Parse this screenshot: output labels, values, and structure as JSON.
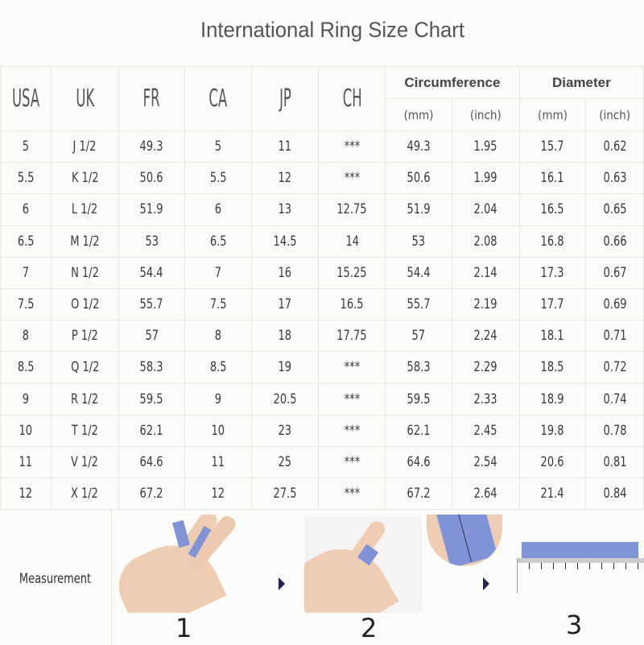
{
  "title": "International Ring Size Chart",
  "headers": {
    "usa": "USA",
    "uk": "UK",
    "fr": "FR",
    "ca": "CA",
    "jp": "JP",
    "ch": "CH",
    "circumference": "Circumference",
    "diameter": "Diameter",
    "mm": "(mm)",
    "inch": "(inch)"
  },
  "rows": [
    [
      "5",
      "J 1/2",
      "49.3",
      "5",
      "11",
      "***",
      "49.3",
      "1.95",
      "15.7",
      "0.62"
    ],
    [
      "5.5",
      "K 1/2",
      "50.6",
      "5.5",
      "12",
      "***",
      "50.6",
      "1.99",
      "16.1",
      "0.63"
    ],
    [
      "6",
      "L 1/2",
      "51.9",
      "6",
      "13",
      "12.75",
      "51.9",
      "2.04",
      "16.5",
      "0.65"
    ],
    [
      "6.5",
      "M 1/2",
      "53",
      "6.5",
      "14.5",
      "14",
      "53",
      "2.08",
      "16.8",
      "0.66"
    ],
    [
      "7",
      "N 1/2",
      "54.4",
      "7",
      "16",
      "15.25",
      "54.4",
      "2.14",
      "17.3",
      "0.67"
    ],
    [
      "7.5",
      "O 1/2",
      "55.7",
      "7.5",
      "17",
      "16.5",
      "55.7",
      "2.19",
      "17.7",
      "0.69"
    ],
    [
      "8",
      "P 1/2",
      "57",
      "8",
      "18",
      "17.75",
      "57",
      "2.24",
      "18.1",
      "0.71"
    ],
    [
      "8.5",
      "Q 1/2",
      "58.3",
      "8.5",
      "19",
      "***",
      "58.3",
      "2.29",
      "18.5",
      "0.72"
    ],
    [
      "9",
      "R 1/2",
      "59.5",
      "9",
      "20.5",
      "***",
      "59.5",
      "2.33",
      "18.9",
      "0.74"
    ],
    [
      "10",
      "T 1/2",
      "62.1",
      "10",
      "23",
      "***",
      "62.1",
      "2.45",
      "19.8",
      "0.78"
    ],
    [
      "11",
      "V 1/2",
      "64.6",
      "11",
      "25",
      "***",
      "64.6",
      "2.54",
      "20.6",
      "0.81"
    ],
    [
      "12",
      "X 1/2",
      "67.2",
      "12",
      "27.5",
      "***",
      "67.2",
      "2.64",
      "21.4",
      "0.84"
    ]
  ],
  "measurement": {
    "label": "Measurement",
    "steps": [
      "1",
      "2",
      "3"
    ]
  },
  "colors": {
    "tape": "#7f93d6",
    "skin": "#efcdb4",
    "arrow": "#23244a"
  }
}
